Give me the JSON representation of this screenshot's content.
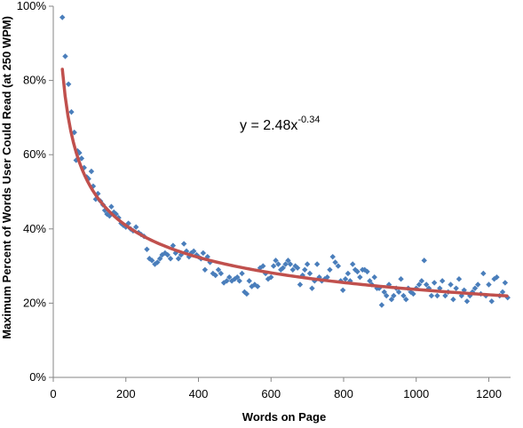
{
  "chart_data": {
    "type": "scatter",
    "title": "",
    "xlabel": "Words on Page",
    "ylabel": "Maximum Percent of Words User Could Read (at 250 WPM)",
    "xlim": [
      0,
      1260
    ],
    "ylim": [
      0,
      100
    ],
    "x_ticks": [
      0,
      200,
      400,
      600,
      800,
      1000,
      1200
    ],
    "y_ticks": [
      0,
      20,
      40,
      60,
      80,
      100
    ],
    "y_tick_labels": [
      "0%",
      "20%",
      "40%",
      "60%",
      "80%",
      "100%"
    ],
    "grid": false,
    "legend": "none",
    "marker_color": "#4a7ebb",
    "trendline": {
      "type": "power",
      "coefficient": 2.48,
      "exponent": -0.34,
      "x_range": [
        25,
        1250
      ],
      "color": "#c0504d",
      "equation_text": "y = 2.48x",
      "equation_exponent": "-0.34"
    },
    "points": [
      [
        25,
        97
      ],
      [
        33,
        86.5
      ],
      [
        42,
        79
      ],
      [
        50,
        71.5
      ],
      [
        58,
        66
      ],
      [
        63,
        58.5
      ],
      [
        67,
        61
      ],
      [
        72,
        60.5
      ],
      [
        78,
        59
      ],
      [
        85,
        56.5
      ],
      [
        92,
        54
      ],
      [
        97,
        53.5
      ],
      [
        105,
        55.5
      ],
      [
        110,
        51.5
      ],
      [
        117,
        48
      ],
      [
        123,
        49.5
      ],
      [
        130,
        47.5
      ],
      [
        137,
        46.5
      ],
      [
        142,
        45
      ],
      [
        148,
        44
      ],
      [
        155,
        43.5
      ],
      [
        160,
        46
      ],
      [
        167,
        44.5
      ],
      [
        173,
        44
      ],
      [
        180,
        43
      ],
      [
        187,
        41.5
      ],
      [
        193,
        41
      ],
      [
        200,
        40.5
      ],
      [
        207,
        41.5
      ],
      [
        213,
        40
      ],
      [
        220,
        39.5
      ],
      [
        228,
        40.5
      ],
      [
        235,
        39
      ],
      [
        242,
        38.5
      ],
      [
        250,
        38
      ],
      [
        258,
        34.5
      ],
      [
        265,
        32
      ],
      [
        272,
        31.5
      ],
      [
        280,
        30.5
      ],
      [
        287,
        31
      ],
      [
        294,
        32
      ],
      [
        300,
        33
      ],
      [
        308,
        33.5
      ],
      [
        315,
        33
      ],
      [
        323,
        32
      ],
      [
        330,
        35.5
      ],
      [
        337,
        33.5
      ],
      [
        345,
        32
      ],
      [
        352,
        33
      ],
      [
        360,
        36
      ],
      [
        367,
        34
      ],
      [
        374,
        32.5
      ],
      [
        380,
        33.5
      ],
      [
        387,
        34
      ],
      [
        395,
        33
      ],
      [
        400,
        32.5
      ],
      [
        407,
        32
      ],
      [
        413,
        33.5
      ],
      [
        418,
        29
      ],
      [
        425,
        32.5
      ],
      [
        432,
        31
      ],
      [
        440,
        28
      ],
      [
        447,
        27.5
      ],
      [
        455,
        29
      ],
      [
        462,
        28
      ],
      [
        470,
        25.5
      ],
      [
        478,
        26
      ],
      [
        485,
        27
      ],
      [
        492,
        26
      ],
      [
        500,
        26.5
      ],
      [
        507,
        27
      ],
      [
        513,
        26
      ],
      [
        520,
        28
      ],
      [
        527,
        23
      ],
      [
        533,
        22.5
      ],
      [
        540,
        26
      ],
      [
        547,
        24.5
      ],
      [
        555,
        25
      ],
      [
        563,
        24.5
      ],
      [
        570,
        29.5
      ],
      [
        578,
        30
      ],
      [
        585,
        28
      ],
      [
        592,
        26.5
      ],
      [
        600,
        27
      ],
      [
        607,
        30
      ],
      [
        613,
        31.5
      ],
      [
        620,
        30.5
      ],
      [
        627,
        29
      ],
      [
        633,
        29.5
      ],
      [
        640,
        30.5
      ],
      [
        647,
        31.5
      ],
      [
        653,
        30.5
      ],
      [
        660,
        29
      ],
      [
        667,
        30
      ],
      [
        673,
        29.5
      ],
      [
        680,
        25
      ],
      [
        687,
        27.5
      ],
      [
        693,
        29
      ],
      [
        700,
        30.5
      ],
      [
        707,
        28
      ],
      [
        713,
        24
      ],
      [
        720,
        26
      ],
      [
        727,
        30.5
      ],
      [
        733,
        27
      ],
      [
        740,
        26
      ],
      [
        748,
        26.5
      ],
      [
        755,
        27
      ],
      [
        762,
        29
      ],
      [
        770,
        32.5
      ],
      [
        777,
        31
      ],
      [
        785,
        30
      ],
      [
        792,
        26
      ],
      [
        798,
        23.5
      ],
      [
        805,
        26.5
      ],
      [
        812,
        28
      ],
      [
        818,
        26
      ],
      [
        825,
        30.5
      ],
      [
        832,
        29
      ],
      [
        838,
        28.5
      ],
      [
        845,
        27
      ],
      [
        852,
        29
      ],
      [
        858,
        29
      ],
      [
        865,
        28.5
      ],
      [
        872,
        26
      ],
      [
        878,
        25
      ],
      [
        885,
        27
      ],
      [
        892,
        24
      ],
      [
        898,
        24
      ],
      [
        905,
        19.5
      ],
      [
        912,
        23
      ],
      [
        918,
        22
      ],
      [
        925,
        25
      ],
      [
        932,
        21
      ],
      [
        938,
        22
      ],
      [
        945,
        24
      ],
      [
        952,
        23
      ],
      [
        958,
        26.5
      ],
      [
        965,
        22
      ],
      [
        972,
        21
      ],
      [
        978,
        24
      ],
      [
        985,
        23
      ],
      [
        992,
        22.5
      ],
      [
        1000,
        24
      ],
      [
        1008,
        25
      ],
      [
        1015,
        26
      ],
      [
        1022,
        31.5
      ],
      [
        1028,
        25
      ],
      [
        1035,
        24
      ],
      [
        1042,
        22
      ],
      [
        1050,
        25.5
      ],
      [
        1058,
        22
      ],
      [
        1065,
        24
      ],
      [
        1072,
        26
      ],
      [
        1080,
        22
      ],
      [
        1088,
        23
      ],
      [
        1095,
        25
      ],
      [
        1102,
        21
      ],
      [
        1110,
        24
      ],
      [
        1118,
        26.5
      ],
      [
        1125,
        22
      ],
      [
        1132,
        23.5
      ],
      [
        1140,
        20.5
      ],
      [
        1148,
        22
      ],
      [
        1155,
        23
      ],
      [
        1162,
        24
      ],
      [
        1170,
        25
      ],
      [
        1178,
        22.5
      ],
      [
        1185,
        28
      ],
      [
        1192,
        22
      ],
      [
        1200,
        25
      ],
      [
        1208,
        20.5
      ],
      [
        1215,
        26.5
      ],
      [
        1222,
        27
      ],
      [
        1230,
        22
      ],
      [
        1238,
        23
      ],
      [
        1245,
        25.5
      ],
      [
        1252,
        21.5
      ]
    ]
  }
}
